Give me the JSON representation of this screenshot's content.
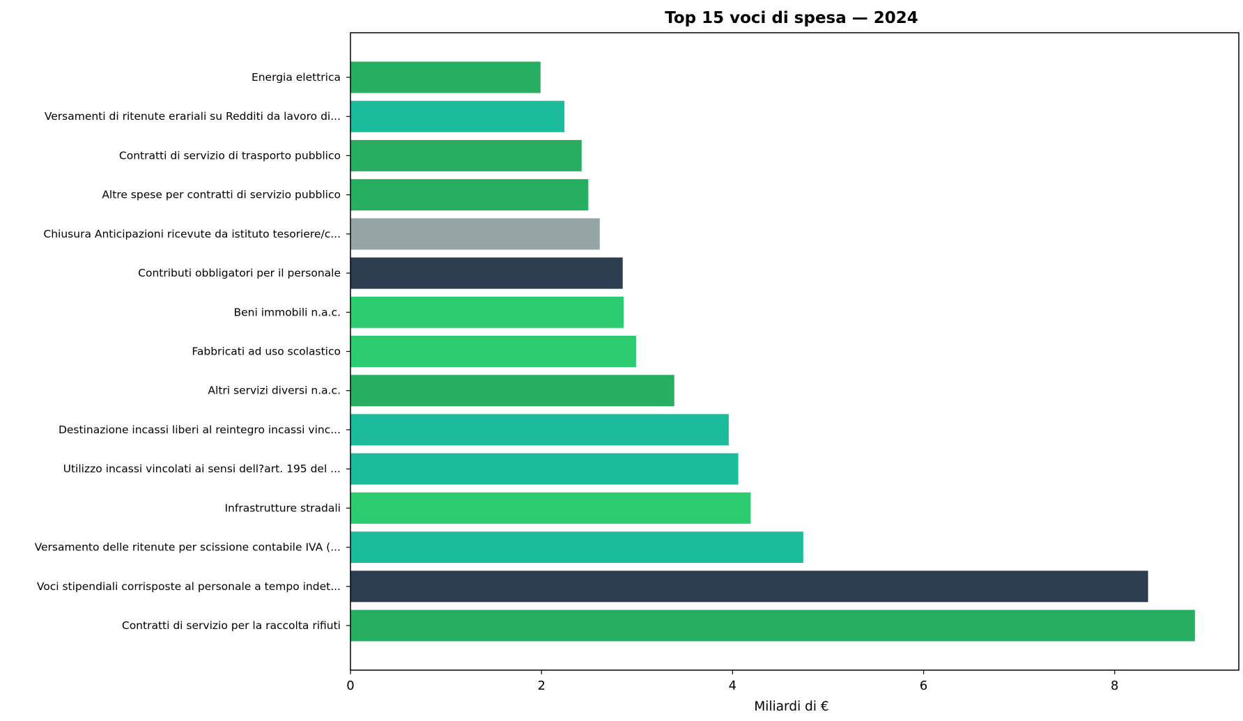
{
  "chart_data": {
    "type": "bar",
    "orientation": "horizontal",
    "title": "Top 15 voci di spesa — 2024",
    "xlabel": "Miliardi di €",
    "ylabel": "",
    "xlim": [
      0,
      9.3
    ],
    "xticks": [
      0,
      2,
      4,
      6,
      8
    ],
    "grid": false,
    "categories": [
      "Contratti di servizio per la raccolta rifiuti",
      "Voci stipendiali corrisposte al personale a tempo indet...",
      "Versamento delle ritenute per scissione contabile IVA (...",
      "Infrastrutture stradali",
      "Utilizzo  incassi vincolati ai sensi dell?art. 195 del ...",
      "Destinazione  incassi liberi al  reintegro incassi vinc...",
      "Altri servizi diversi n.a.c.",
      "Fabbricati ad uso scolastico",
      "Beni immobili n.a.c.",
      "Contributi obbligatori per il personale",
      "Chiusura Anticipazioni ricevute da istituto tesoriere/c...",
      "Altre spese per contratti di servizio pubblico",
      "Contratti di servizio di trasporto pubblico",
      "Versamenti di ritenute erariali su Redditi da lavoro di...",
      "Energia elettrica"
    ],
    "values": [
      8.84,
      8.35,
      4.74,
      4.19,
      4.06,
      3.96,
      3.39,
      2.99,
      2.86,
      2.85,
      2.61,
      2.49,
      2.42,
      2.24,
      1.99
    ],
    "colors": [
      "#27ae60",
      "#2c3e50",
      "#1abc9c",
      "#2ecc71",
      "#1abc9c",
      "#1abc9c",
      "#27ae60",
      "#2ecc71",
      "#2ecc71",
      "#2c3e50",
      "#95a5a6",
      "#27ae60",
      "#27ae60",
      "#1abc9c",
      "#27ae60"
    ]
  }
}
